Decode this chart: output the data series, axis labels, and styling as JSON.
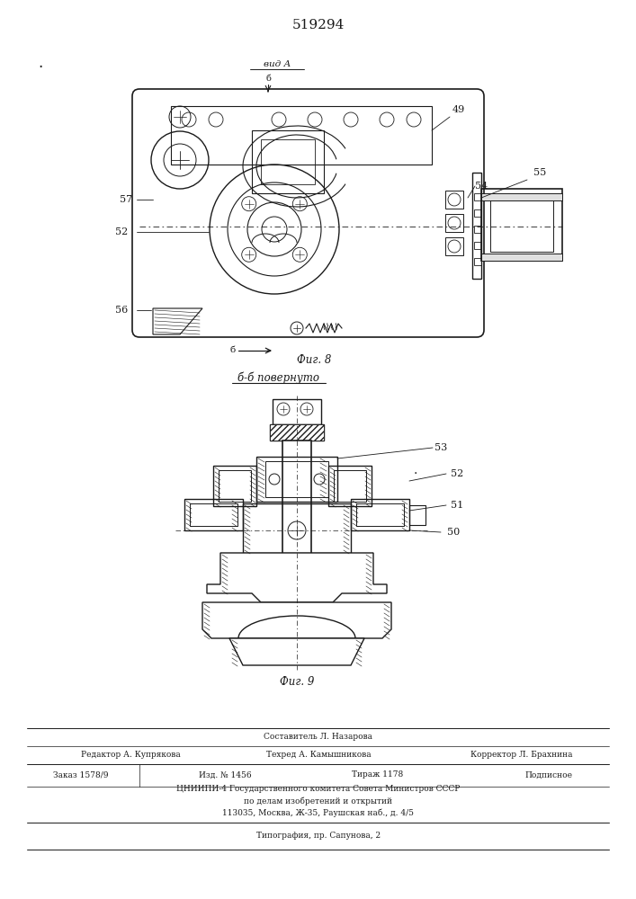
{
  "title": "519294",
  "bg": "#ffffff",
  "lc": "#1a1a1a",
  "tc": "#1a1a1a",
  "fig8_label": "Фиг. 8",
  "fig9_label": "Фиг. 9",
  "vid_a": "вид А",
  "bb_label": "б-б повернуто",
  "footer_составитель": "Составитель Л. Назарова",
  "footer_редактор": "Редактор А. Купрякова",
  "footer_техред": "Техред А. Камышникова",
  "footer_корректор": "Корректор Л. Брахнина",
  "footer_заказ": "Заказ 1578/9",
  "footer_изд": "Изд. № 1456",
  "footer_тираж": "Тираж 1178",
  "footer_подписное": "Подписное",
  "footer_цниипи": "ЦНИИПИ-4 Государственного комитета Совета Министров СССР",
  "footer_делам": "по делам изобретений и открытий",
  "footer_адрес": "113035, Москва, Ж-35, Раушская наб., д. 4/5",
  "footer_типография": "Типография, пр. Сапунова, 2"
}
